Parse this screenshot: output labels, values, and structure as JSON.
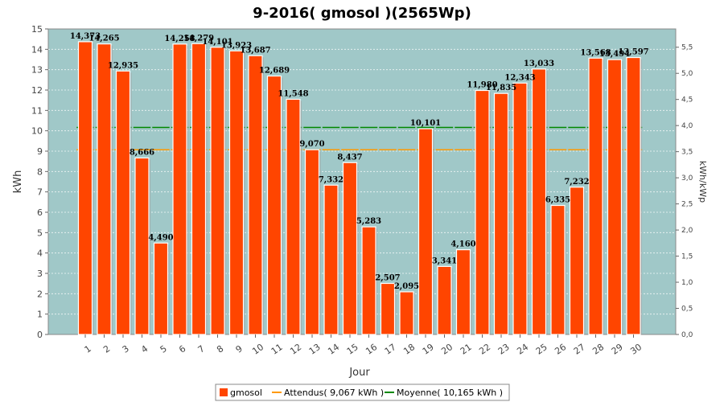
{
  "chart_data": {
    "type": "bar",
    "title": "9-2016( gmosol )(2565Wp)",
    "xlabel": "Jour",
    "ylabel": "kWh",
    "y2label": "kWh/kWp",
    "ylim": [
      0,
      15
    ],
    "y2lim": [
      0,
      5.85
    ],
    "yticks": [
      "0",
      "1",
      "2",
      "3",
      "4",
      "5",
      "6",
      "7",
      "8",
      "9",
      "10",
      "11",
      "12",
      "13",
      "14",
      "15"
    ],
    "y2ticks": [
      "0,0",
      "0,5",
      "1,0",
      "1,5",
      "2,0",
      "2,5",
      "3,0",
      "3,5",
      "4,0",
      "4,5",
      "5,0",
      "5,5"
    ],
    "categories": [
      "1",
      "2",
      "3",
      "4",
      "5",
      "6",
      "7",
      "8",
      "9",
      "10",
      "11",
      "12",
      "13",
      "14",
      "15",
      "16",
      "17",
      "18",
      "19",
      "20",
      "21",
      "22",
      "23",
      "24",
      "25",
      "26",
      "27",
      "28",
      "29",
      "30"
    ],
    "series": [
      {
        "name": "gmosol",
        "color": "#ff4500",
        "values": [
          14.373,
          14.265,
          12.935,
          8.666,
          4.49,
          14.258,
          14.279,
          14.101,
          13.923,
          13.687,
          12.689,
          11.548,
          9.07,
          7.332,
          8.437,
          5.283,
          2.507,
          2.095,
          10.101,
          3.341,
          4.16,
          11.98,
          11.835,
          12.343,
          13.033,
          6.335,
          7.232,
          13.568,
          13.494,
          13.597
        ],
        "labels": [
          "14,373",
          "14,265",
          "12,935",
          "8,666",
          "4,490",
          "14,258",
          "14,279",
          "14,101",
          "13,923",
          "13,687",
          "12,689",
          "11,548",
          "9,070",
          "7,332",
          "8,437",
          "5,283",
          "2,507",
          "2,095",
          "10,101",
          "3,341",
          "4,160",
          "11,980",
          "11,835",
          "12,343",
          "13,033",
          "6,335",
          "7,232",
          "13,568",
          "13,494",
          "13,597"
        ]
      }
    ],
    "reference_lines": [
      {
        "name": "Attendus( 9,067 kWh )",
        "color": "#ff9900",
        "value": 9.067
      },
      {
        "name": "Moyenne( 10,165 kWh )",
        "color": "#008800",
        "value": 10.165
      }
    ],
    "plot_background": "#a0c8c8",
    "grid": true,
    "legend_position": "bottom"
  }
}
